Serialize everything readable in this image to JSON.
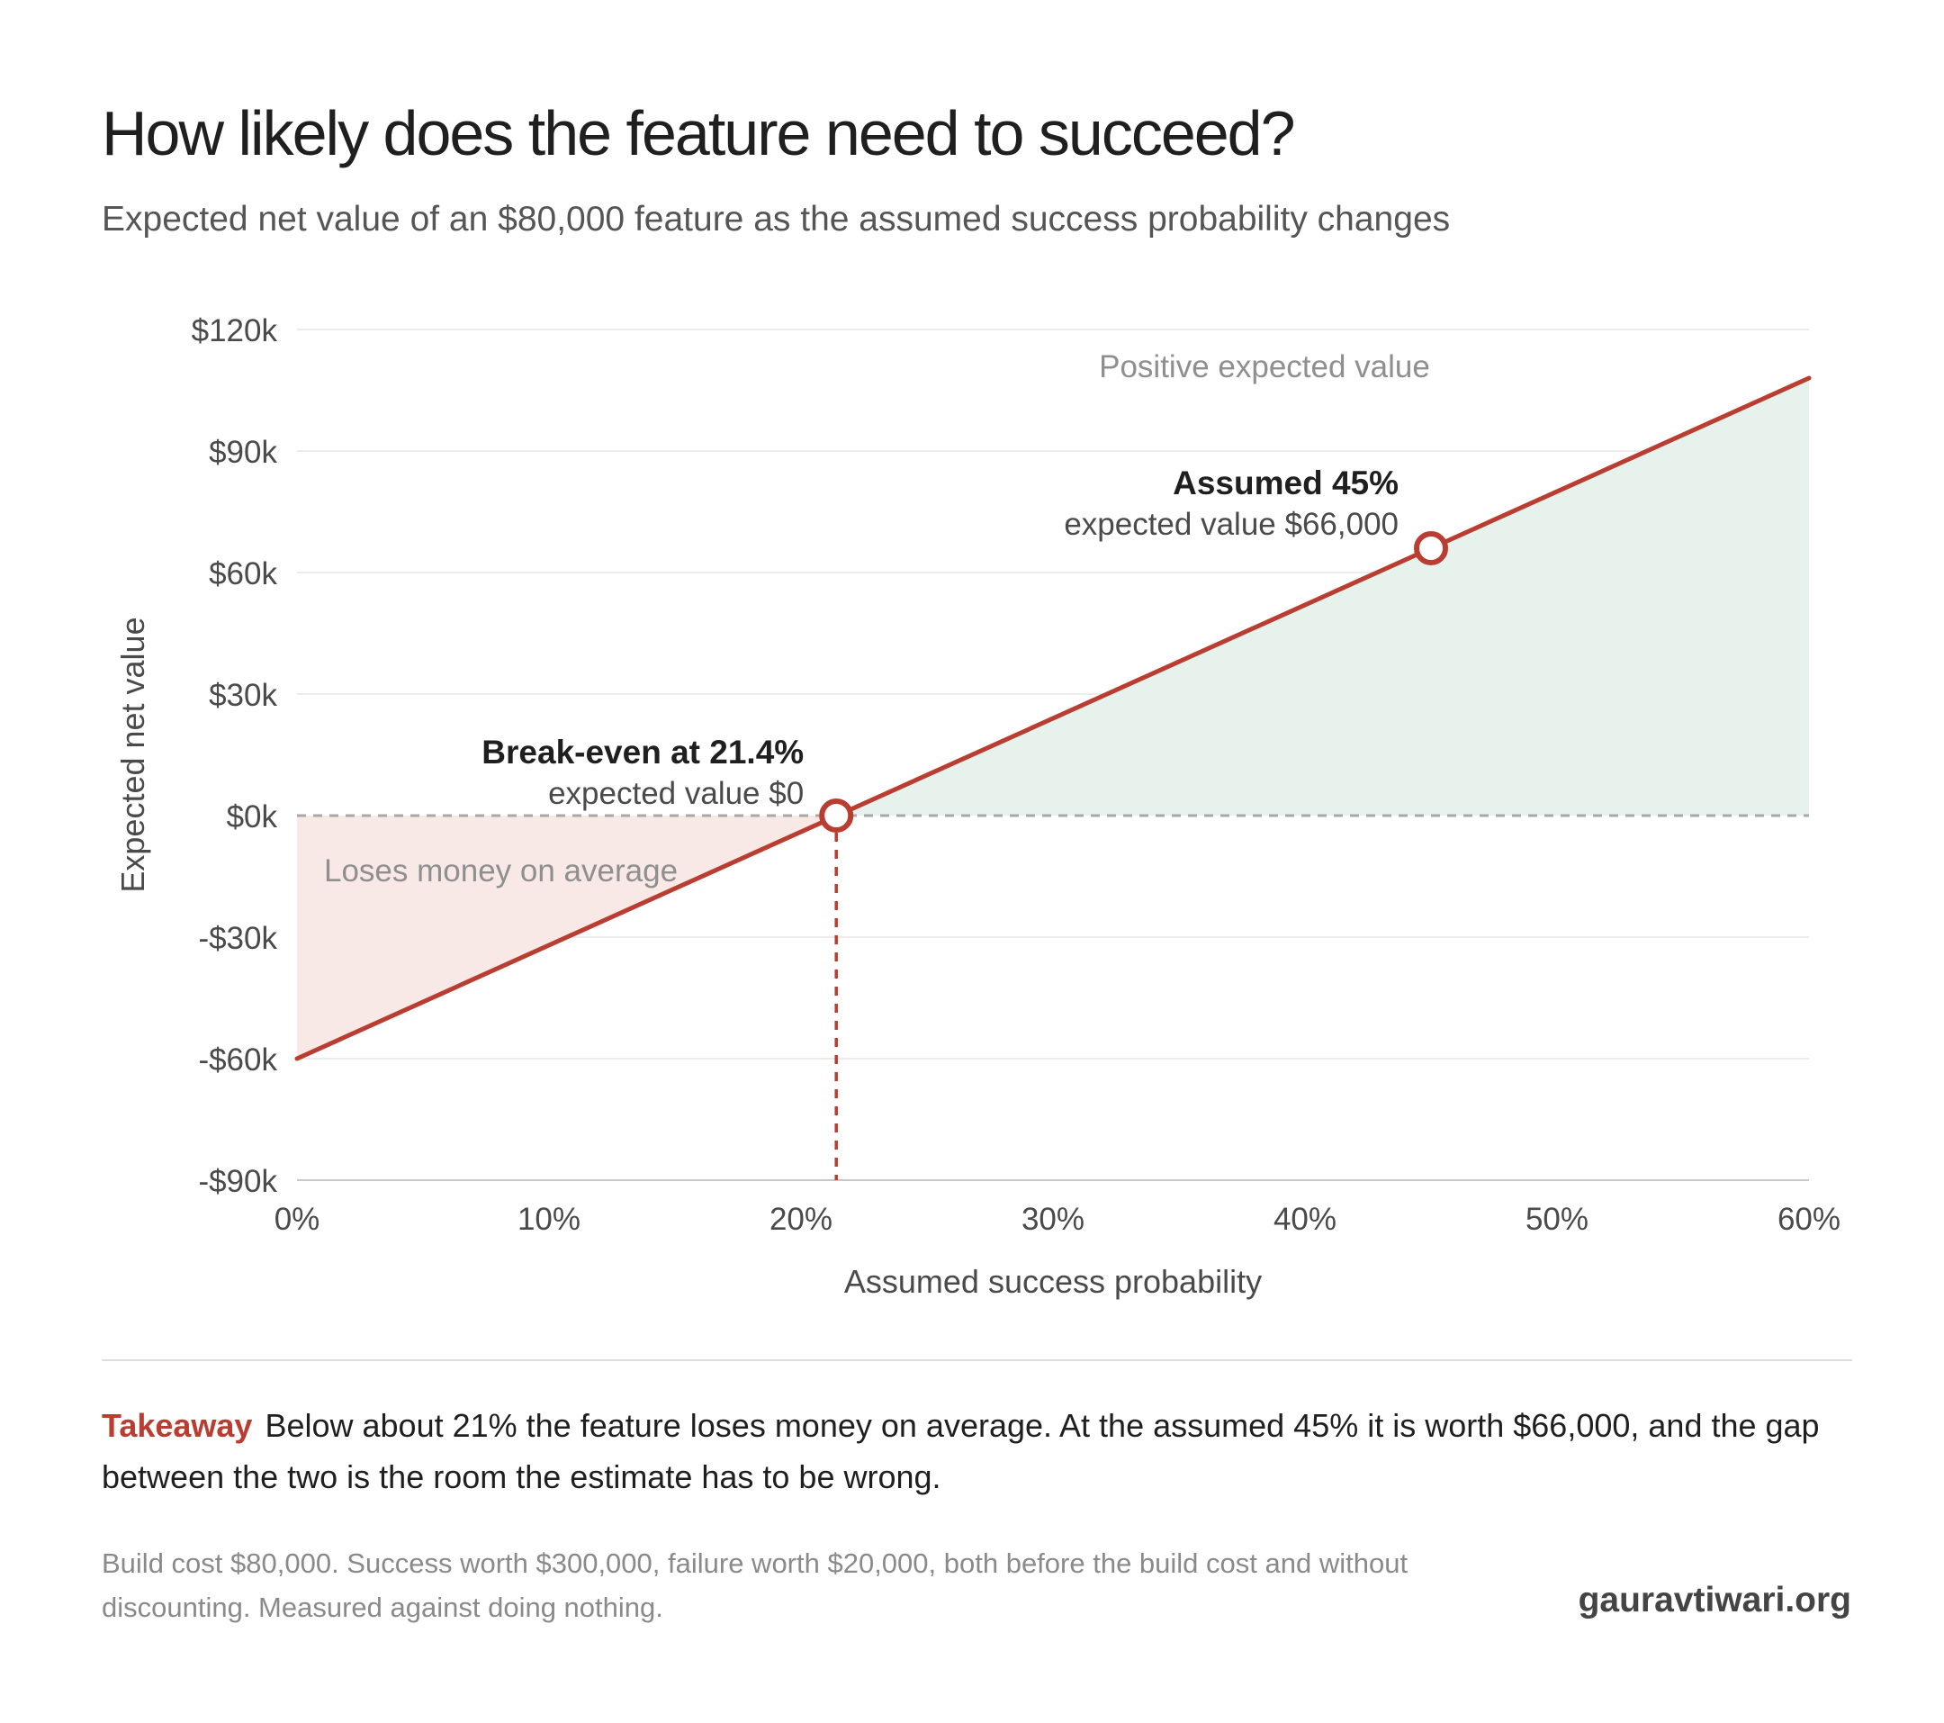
{
  "header": {
    "title": "How likely does the feature need to succeed?",
    "subtitle": "Expected net value of an $80,000 feature as the assumed success probability changes"
  },
  "chart_data": {
    "type": "line",
    "xlabel": "Assumed success probability",
    "ylabel": "Expected net value",
    "xlim": [
      0,
      60
    ],
    "ylim": [
      -90000,
      120000
    ],
    "x_ticks": [
      0,
      10,
      20,
      30,
      40,
      50,
      60
    ],
    "x_tick_labels": [
      "0%",
      "10%",
      "20%",
      "30%",
      "40%",
      "50%",
      "60%"
    ],
    "y_ticks": [
      120000,
      90000,
      60000,
      30000,
      0,
      -30000,
      -60000,
      -90000
    ],
    "y_tick_labels": [
      "$120k",
      "$90k",
      "$60k",
      "$30k",
      "$0k",
      "-$30k",
      "-$60k",
      "-$90k"
    ],
    "grid": true,
    "series": [
      {
        "x": [
          0,
          60
        ],
        "values": [
          -60000,
          108000
        ]
      }
    ],
    "regions": {
      "positive_label": "Positive expected value",
      "negative_label": "Loses money on average"
    },
    "annotations": [
      {
        "x": 21.4,
        "y": 0,
        "title": "Break-even at 21.4%",
        "text": "expected value $0"
      },
      {
        "x": 45,
        "y": 66000,
        "title": "Assumed 45%",
        "text": "expected value $66,000"
      }
    ],
    "colors": {
      "line": "#b93d30",
      "positive_fill": "#e6f2eb",
      "negative_fill": "#f8e8e6",
      "grid": "#ececec",
      "zero_line": "#a8a8a8"
    }
  },
  "takeaway": {
    "label": "Takeaway",
    "text": "Below about 21% the feature loses money on average. At the assumed 45% it is worth $66,000, and the gap between the two is the room the estimate has to be wrong."
  },
  "footnote": "Build cost $80,000. Success worth $300,000, failure worth $20,000, both before the build cost and without discounting. Measured against doing nothing.",
  "brand": "gauravtiwari.org"
}
